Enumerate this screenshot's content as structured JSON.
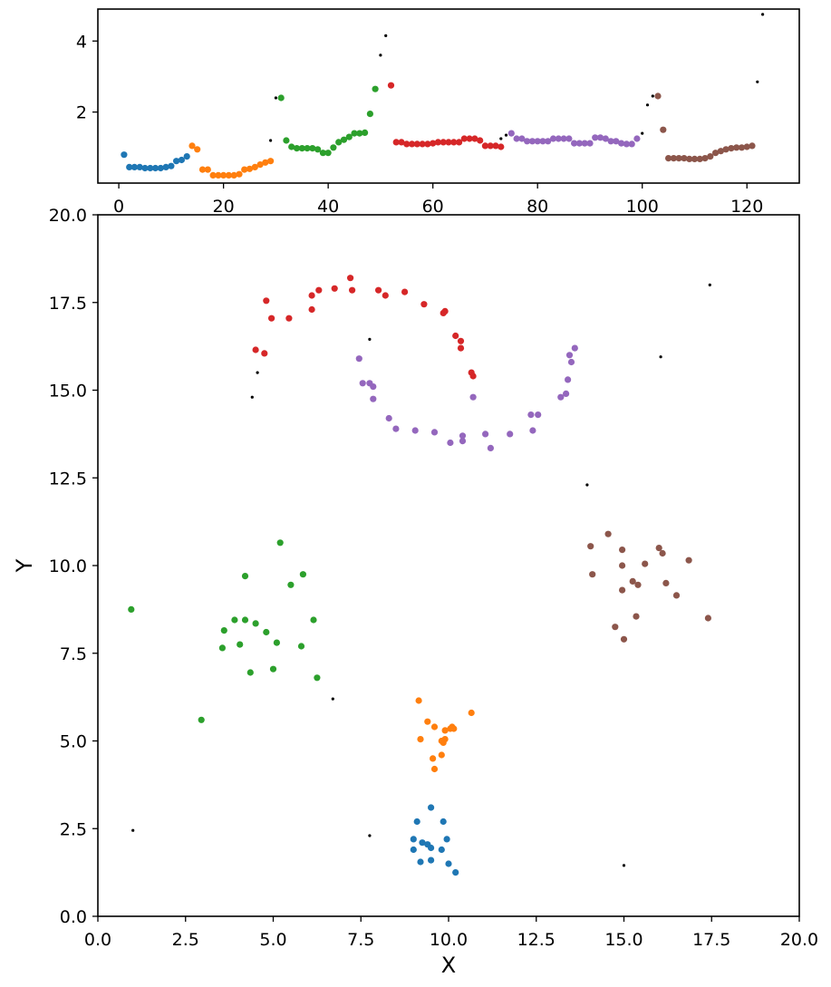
{
  "chart_data": [
    {
      "type": "scatter",
      "title": "",
      "xlabel": "",
      "ylabel": "",
      "xlim": [
        -4,
        130
      ],
      "ylim": [
        0.0,
        4.9
      ],
      "xticks": [
        0,
        20,
        40,
        60,
        80,
        100,
        120
      ],
      "yticks": [
        2,
        4
      ],
      "grid": false,
      "series": [
        {
          "color": "#1f77b4",
          "x": [
            1,
            2,
            3,
            4,
            5,
            6,
            7,
            8,
            9,
            10,
            11,
            12,
            13
          ],
          "y": [
            0.8,
            0.45,
            0.45,
            0.45,
            0.42,
            0.42,
            0.42,
            0.42,
            0.45,
            0.48,
            0.62,
            0.65,
            0.75
          ]
        },
        {
          "color": "#ff7f0e",
          "x": [
            14,
            15,
            16,
            17,
            18,
            19,
            20,
            21,
            22,
            23,
            24,
            25,
            26,
            27,
            28,
            29
          ],
          "y": [
            1.05,
            0.95,
            0.38,
            0.38,
            0.22,
            0.22,
            0.22,
            0.22,
            0.22,
            0.25,
            0.38,
            0.4,
            0.45,
            0.52,
            0.58,
            0.62
          ]
        },
        {
          "color": "#2ca02c",
          "x": [
            31,
            32,
            33,
            34,
            35,
            36,
            37,
            38,
            39,
            40,
            41,
            42,
            43,
            44,
            45,
            46,
            47,
            48,
            49
          ],
          "y": [
            2.4,
            1.2,
            1.02,
            0.98,
            0.98,
            0.98,
            0.98,
            0.95,
            0.85,
            0.85,
            1.0,
            1.15,
            1.22,
            1.3,
            1.4,
            1.4,
            1.42,
            1.95,
            2.65
          ]
        },
        {
          "color": "#d62728",
          "x": [
            52,
            53,
            54,
            55,
            56,
            57,
            58,
            59,
            60,
            61,
            62,
            63,
            64,
            65,
            66,
            67,
            68,
            69,
            70,
            71,
            72,
            73
          ],
          "y": [
            2.75,
            1.15,
            1.15,
            1.1,
            1.1,
            1.1,
            1.1,
            1.1,
            1.12,
            1.15,
            1.15,
            1.15,
            1.15,
            1.15,
            1.25,
            1.25,
            1.25,
            1.2,
            1.05,
            1.05,
            1.05,
            1.02
          ]
        },
        {
          "color": "#9467bd",
          "x": [
            75,
            76,
            77,
            78,
            79,
            80,
            81,
            82,
            83,
            84,
            85,
            86,
            87,
            88,
            89,
            90,
            91,
            92,
            93,
            94,
            95,
            96,
            97,
            98,
            99
          ],
          "y": [
            1.4,
            1.25,
            1.25,
            1.18,
            1.18,
            1.18,
            1.18,
            1.18,
            1.25,
            1.25,
            1.25,
            1.25,
            1.12,
            1.12,
            1.12,
            1.12,
            1.28,
            1.28,
            1.25,
            1.18,
            1.18,
            1.12,
            1.1,
            1.1,
            1.25
          ]
        },
        {
          "color": "#8c564b",
          "x": [
            103,
            104,
            105,
            106,
            107,
            108,
            109,
            110,
            111,
            112,
            113,
            114,
            115,
            116,
            117,
            118,
            119,
            120,
            121
          ],
          "y": [
            2.45,
            1.5,
            0.7,
            0.7,
            0.7,
            0.7,
            0.68,
            0.68,
            0.68,
            0.7,
            0.75,
            0.85,
            0.9,
            0.95,
            0.98,
            1.0,
            1.0,
            1.02,
            1.05
          ]
        }
      ],
      "noise": {
        "color": "#000000",
        "x": [
          29,
          30,
          50,
          51,
          73,
          74,
          100,
          101,
          102,
          122,
          123
        ],
        "y": [
          1.2,
          2.4,
          3.6,
          4.15,
          1.25,
          1.35,
          1.4,
          2.2,
          2.45,
          2.85,
          4.75
        ]
      }
    },
    {
      "type": "scatter",
      "title": "",
      "xlabel": "X",
      "ylabel": "Y",
      "xlim": [
        0.0,
        20.0
      ],
      "ylim": [
        0.0,
        20.0
      ],
      "xticks": [
        "0.0",
        "2.5",
        "5.0",
        "7.5",
        "10.0",
        "12.5",
        "15.0",
        "17.5",
        "20.0"
      ],
      "yticks": [
        "0.0",
        "2.5",
        "5.0",
        "7.5",
        "10.0",
        "12.5",
        "15.0",
        "17.5",
        "20.0"
      ],
      "grid": false,
      "series": [
        {
          "color": "#1f77b4",
          "points": [
            [
              9.1,
              2.7
            ],
            [
              9.5,
              3.1
            ],
            [
              9.85,
              2.7
            ],
            [
              9.0,
              2.2
            ],
            [
              9.25,
              2.1
            ],
            [
              9.4,
              2.05
            ],
            [
              9.5,
              1.95
            ],
            [
              9.8,
              1.9
            ],
            [
              9.95,
              2.2
            ],
            [
              9.0,
              1.9
            ],
            [
              9.2,
              1.55
            ],
            [
              9.5,
              1.6
            ],
            [
              10.0,
              1.5
            ],
            [
              10.2,
              1.25
            ]
          ]
        },
        {
          "color": "#ff7f0e",
          "points": [
            [
              9.15,
              6.15
            ],
            [
              10.65,
              5.8
            ],
            [
              9.4,
              5.55
            ],
            [
              9.6,
              5.4
            ],
            [
              9.9,
              5.3
            ],
            [
              10.05,
              5.35
            ],
            [
              10.1,
              5.4
            ],
            [
              10.15,
              5.35
            ],
            [
              9.2,
              5.05
            ],
            [
              9.8,
              5.0
            ],
            [
              9.85,
              4.95
            ],
            [
              9.9,
              5.05
            ],
            [
              9.8,
              4.6
            ],
            [
              9.55,
              4.5
            ],
            [
              9.6,
              4.2
            ]
          ]
        },
        {
          "color": "#2ca02c",
          "points": [
            [
              0.95,
              8.75
            ],
            [
              5.2,
              10.65
            ],
            [
              4.2,
              9.7
            ],
            [
              5.85,
              9.75
            ],
            [
              5.5,
              9.45
            ],
            [
              3.6,
              8.15
            ],
            [
              3.9,
              8.45
            ],
            [
              4.2,
              8.45
            ],
            [
              4.5,
              8.35
            ],
            [
              6.15,
              8.45
            ],
            [
              4.8,
              8.1
            ],
            [
              4.05,
              7.75
            ],
            [
              5.1,
              7.8
            ],
            [
              5.8,
              7.7
            ],
            [
              3.55,
              7.65
            ],
            [
              4.35,
              6.95
            ],
            [
              5.0,
              7.05
            ],
            [
              6.25,
              6.8
            ],
            [
              2.95,
              5.6
            ]
          ]
        },
        {
          "color": "#d62728",
          "points": [
            [
              7.2,
              18.2
            ],
            [
              6.75,
              17.9
            ],
            [
              7.25,
              17.85
            ],
            [
              8.0,
              17.85
            ],
            [
              8.75,
              17.8
            ],
            [
              6.3,
              17.85
            ],
            [
              6.1,
              17.7
            ],
            [
              8.2,
              17.7
            ],
            [
              4.8,
              17.55
            ],
            [
              6.1,
              17.3
            ],
            [
              9.3,
              17.45
            ],
            [
              9.85,
              17.2
            ],
            [
              9.9,
              17.25
            ],
            [
              4.95,
              17.05
            ],
            [
              5.45,
              17.05
            ],
            [
              10.2,
              16.55
            ],
            [
              10.35,
              16.4
            ],
            [
              10.35,
              16.2
            ],
            [
              4.5,
              16.15
            ],
            [
              4.75,
              16.05
            ],
            [
              10.65,
              15.5
            ],
            [
              10.7,
              15.4
            ]
          ]
        },
        {
          "color": "#9467bd",
          "points": [
            [
              13.6,
              16.2
            ],
            [
              13.45,
              16.0
            ],
            [
              13.5,
              15.8
            ],
            [
              13.4,
              15.3
            ],
            [
              7.45,
              15.9
            ],
            [
              7.55,
              15.2
            ],
            [
              7.75,
              15.2
            ],
            [
              7.85,
              15.1
            ],
            [
              7.85,
              14.75
            ],
            [
              13.35,
              14.9
            ],
            [
              13.2,
              14.8
            ],
            [
              10.7,
              14.8
            ],
            [
              12.35,
              14.3
            ],
            [
              12.55,
              14.3
            ],
            [
              8.3,
              14.2
            ],
            [
              8.5,
              13.9
            ],
            [
              9.05,
              13.85
            ],
            [
              9.6,
              13.8
            ],
            [
              11.05,
              13.75
            ],
            [
              11.75,
              13.75
            ],
            [
              12.4,
              13.85
            ],
            [
              10.4,
              13.7
            ],
            [
              10.4,
              13.55
            ],
            [
              10.05,
              13.5
            ],
            [
              11.2,
              13.35
            ]
          ]
        },
        {
          "color": "#8c564b",
          "points": [
            [
              14.55,
              10.9
            ],
            [
              14.05,
              10.55
            ],
            [
              14.95,
              10.45
            ],
            [
              16.0,
              10.5
            ],
            [
              16.1,
              10.35
            ],
            [
              14.1,
              9.75
            ],
            [
              14.95,
              10.0
            ],
            [
              15.6,
              10.05
            ],
            [
              16.85,
              10.15
            ],
            [
              15.25,
              9.55
            ],
            [
              15.4,
              9.45
            ],
            [
              16.2,
              9.5
            ],
            [
              14.95,
              9.3
            ],
            [
              16.5,
              9.15
            ],
            [
              14.75,
              8.25
            ],
            [
              15.35,
              8.55
            ],
            [
              17.4,
              8.5
            ],
            [
              15.0,
              7.9
            ]
          ]
        }
      ],
      "noise": {
        "color": "#000000",
        "points": [
          [
            17.45,
            18.0
          ],
          [
            7.75,
            16.45
          ],
          [
            4.55,
            15.5
          ],
          [
            4.4,
            14.8
          ],
          [
            16.05,
            15.95
          ],
          [
            13.95,
            12.3
          ],
          [
            6.7,
            6.2
          ],
          [
            1.0,
            2.45
          ],
          [
            7.75,
            2.3
          ],
          [
            15.0,
            1.45
          ]
        ]
      }
    }
  ]
}
